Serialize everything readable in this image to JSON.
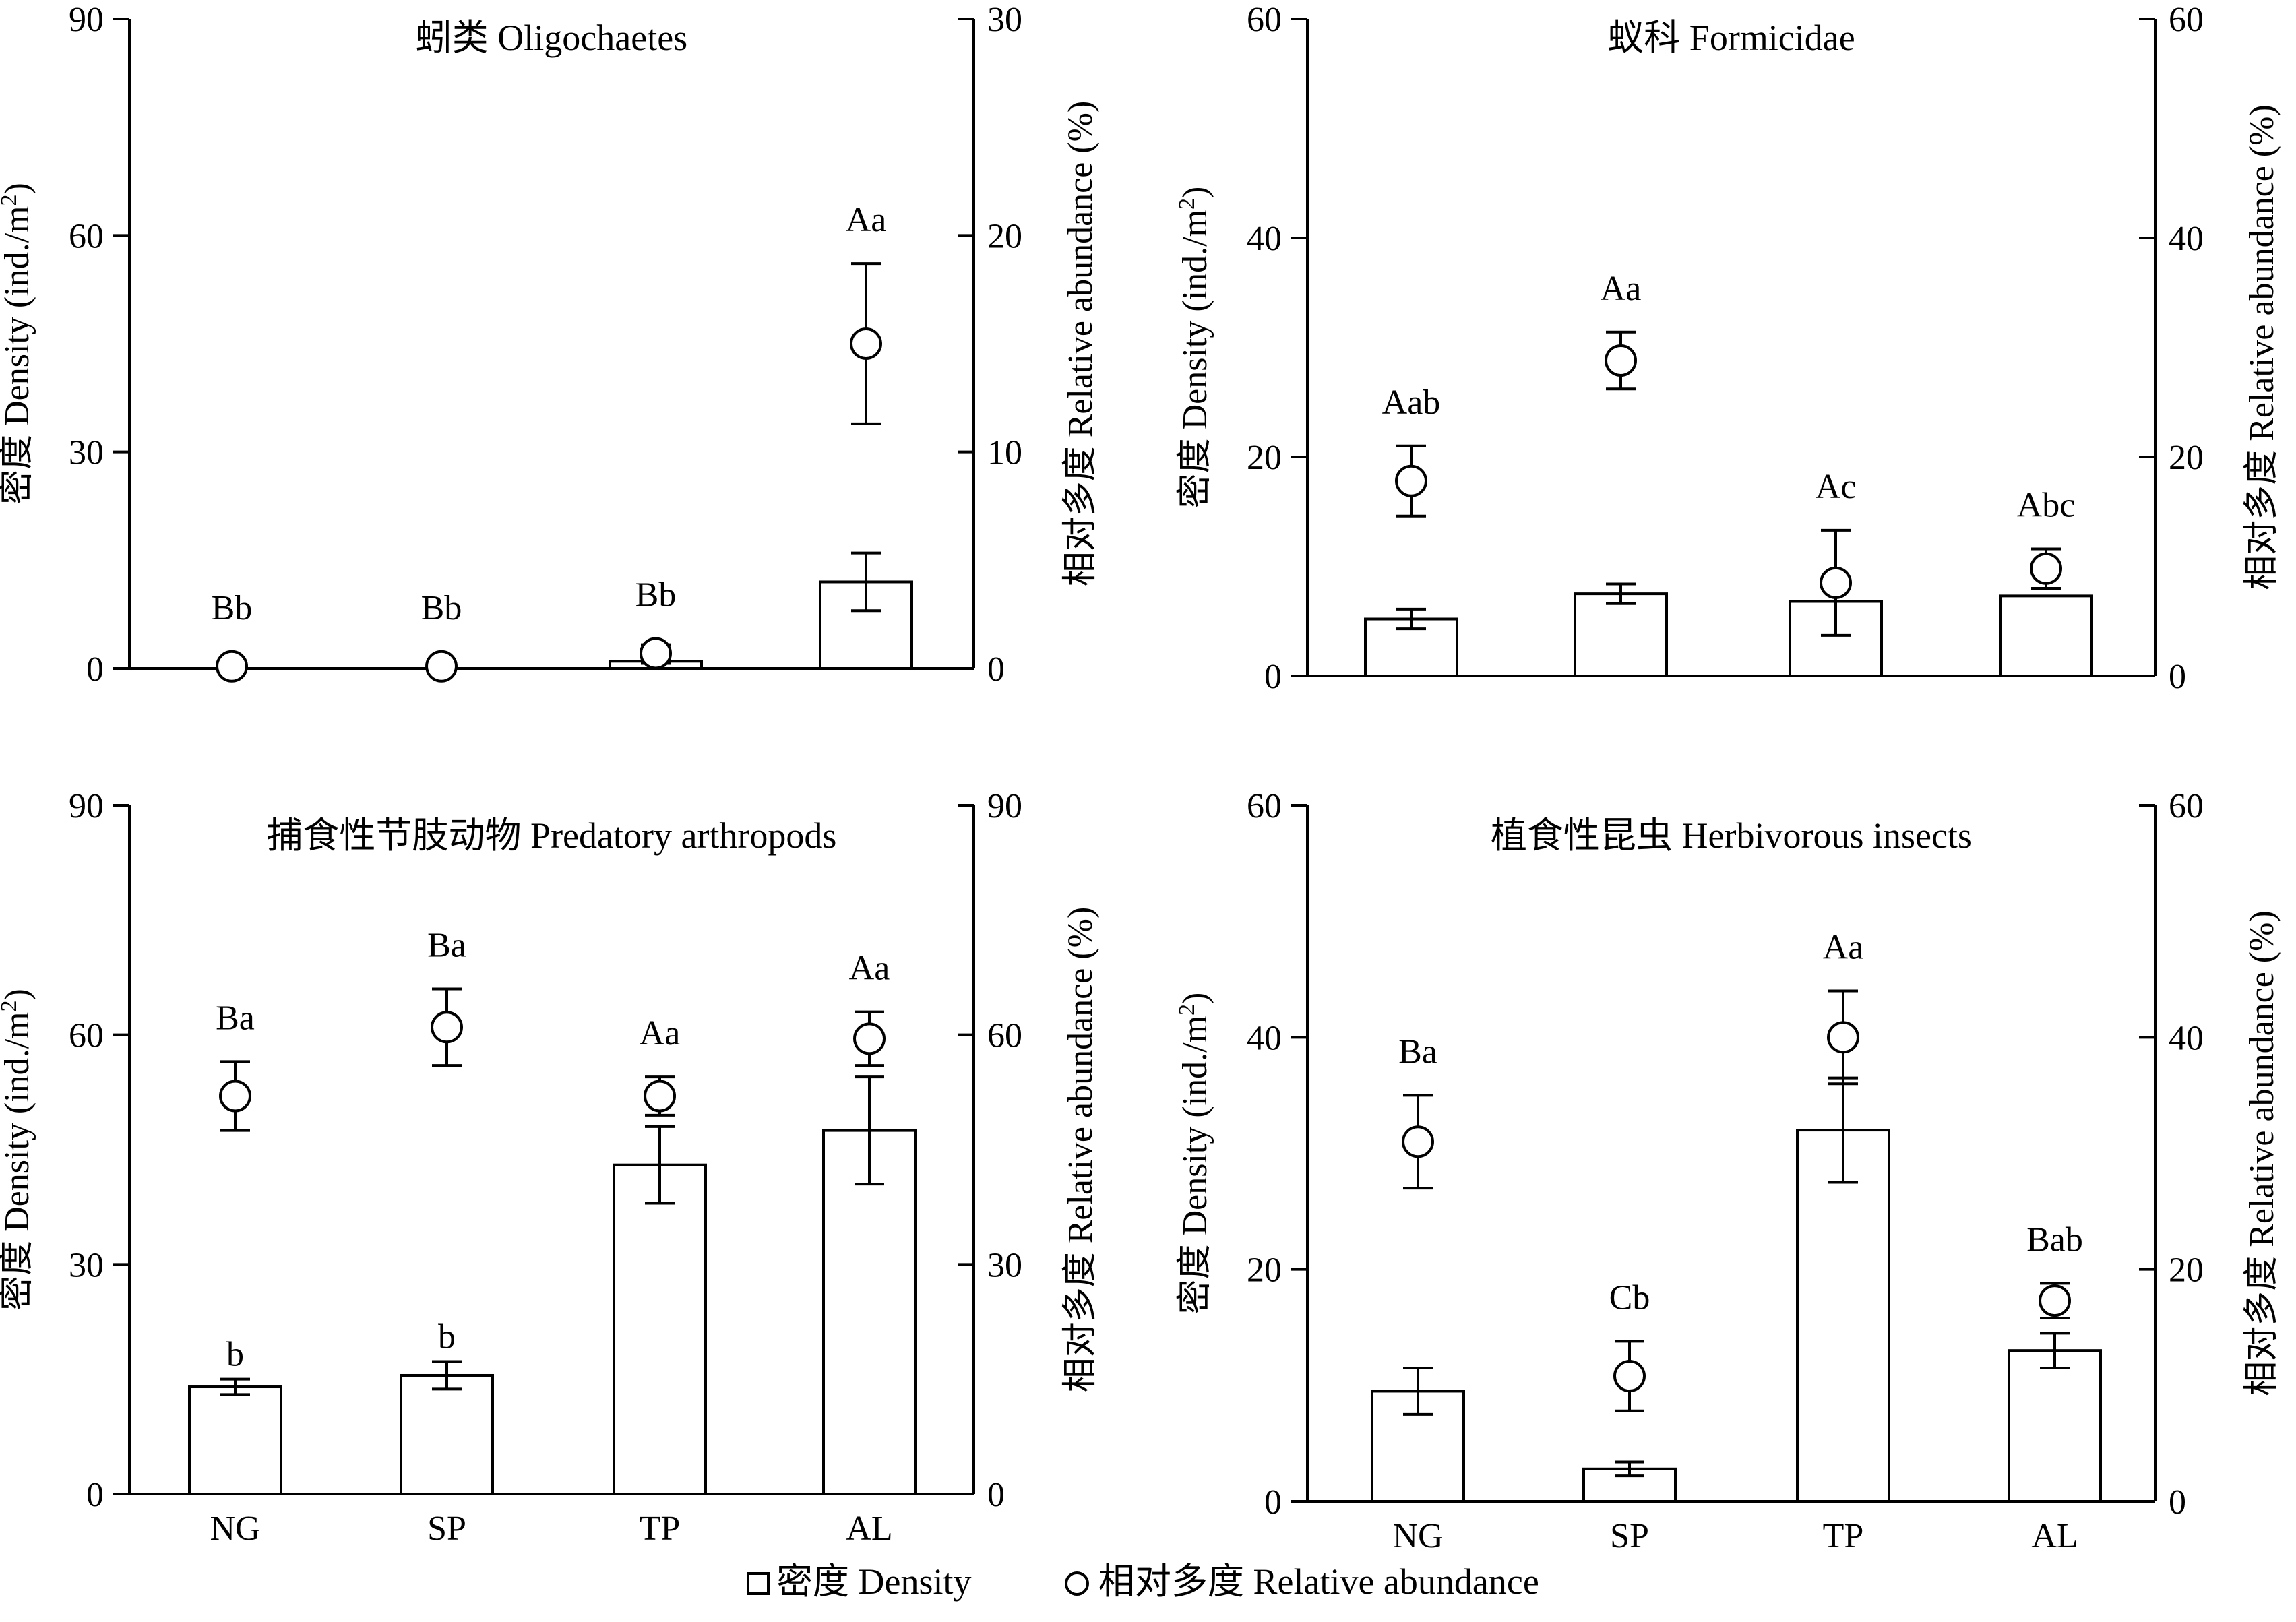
{
  "chart_data": [
    {
      "type": "bar",
      "title": "蚓类 Oligochaetes",
      "categories": [
        "NG",
        "SP",
        "TP",
        "AL"
      ],
      "show_category_labels": false,
      "ylabel": "密度 Density (ind./m²)",
      "y2label": "相对多度 Relative abundance (%)",
      "ylim": [
        0,
        90
      ],
      "y_ticks": [
        0,
        30,
        60,
        90
      ],
      "y2lim": [
        0,
        30
      ],
      "y2_ticks": [
        0,
        10,
        20,
        30
      ],
      "series": [
        {
          "name": "密度 Density",
          "values": [
            0,
            0,
            1,
            12
          ],
          "errors": [
            0,
            0,
            0.3,
            4
          ],
          "labels": [
            "",
            "",
            "",
            ""
          ]
        },
        {
          "name": "相对多度 Relative abundance",
          "axis": "right",
          "values": [
            0.1,
            0.1,
            0.7,
            15
          ],
          "errors": [
            0,
            0,
            0.4,
            3.7
          ],
          "labels": [
            "Bb",
            "Bb",
            "Bb",
            "Aa"
          ]
        }
      ]
    },
    {
      "type": "bar",
      "title": "蚁科 Formicidae",
      "categories": [
        "NG",
        "SP",
        "TP",
        "AL"
      ],
      "show_category_labels": false,
      "ylabel": "密度 Density (ind./m²)",
      "y2label": "相对多度 Relative abundance (%)",
      "ylim": [
        0,
        60
      ],
      "y_ticks": [
        0,
        20,
        40,
        60
      ],
      "y2lim": [
        0,
        60
      ],
      "y2_ticks": [
        0,
        20,
        40,
        60
      ],
      "series": [
        {
          "name": "密度 Density",
          "values": [
            5.2,
            7.5,
            6.8,
            7.3
          ],
          "errors": [
            0.9,
            0.9,
            0,
            0
          ],
          "labels": [
            "",
            "",
            "",
            ""
          ]
        },
        {
          "name": "相对多度 Relative abundance",
          "axis": "right",
          "values": [
            17.8,
            28.8,
            8.5,
            9.8
          ],
          "errors": [
            3.2,
            2.6,
            4.8,
            1.8
          ],
          "labels": [
            "Aab",
            "Aa",
            "Ac",
            "Abc"
          ]
        }
      ]
    },
    {
      "type": "bar",
      "title": "捕食性节肢动物 Predatory arthropods",
      "categories": [
        "NG",
        "SP",
        "TP",
        "AL"
      ],
      "show_category_labels": true,
      "ylabel": "密度 Density (ind./m²)",
      "y2label": "相对多度 Relative abundance (%)",
      "ylim": [
        0,
        90
      ],
      "y_ticks": [
        0,
        30,
        60,
        90
      ],
      "y2lim": [
        0,
        90
      ],
      "y2_ticks": [
        0,
        30,
        60,
        90
      ],
      "series": [
        {
          "name": "密度 Density",
          "values": [
            14,
            15.5,
            43,
            47.5
          ],
          "errors": [
            1,
            1.8,
            5,
            7
          ],
          "labels": [
            "b",
            "b",
            "",
            ""
          ]
        },
        {
          "name": "相对多度 Relative abundance",
          "axis": "right",
          "values": [
            52,
            61,
            52,
            59.5
          ],
          "errors": [
            4.5,
            5,
            2.5,
            3.5
          ],
          "labels": [
            "Ba",
            "Ba",
            "Aa",
            "Aa"
          ]
        }
      ]
    },
    {
      "type": "bar",
      "title": "植食性昆虫 Herbivorous insects",
      "categories": [
        "NG",
        "SP",
        "TP",
        "AL"
      ],
      "show_category_labels": true,
      "ylabel": "密度 Density (ind./m²)",
      "y2label": "相对多度 Relative abundance (%)",
      "ylim": [
        0,
        60
      ],
      "y_ticks": [
        0,
        20,
        40,
        60
      ],
      "y2lim": [
        0,
        60
      ],
      "y2_ticks": [
        0,
        20,
        40,
        60
      ],
      "series": [
        {
          "name": "密度 Density",
          "values": [
            9.5,
            2.8,
            32,
            13
          ],
          "errors": [
            2,
            0.6,
            4.5,
            1.5
          ],
          "labels": [
            "",
            "",
            "",
            ""
          ]
        },
        {
          "name": "相对多度 Relative abundance",
          "axis": "right",
          "values": [
            31,
            10.8,
            40,
            17.3
          ],
          "errors": [
            4,
            3,
            4,
            1.5
          ],
          "labels": [
            "Ba",
            "Cb",
            "Aa",
            "Bab"
          ]
        }
      ]
    }
  ],
  "legend": {
    "position": "bottom",
    "items": [
      {
        "marker": "square",
        "label": "密度 Density"
      },
      {
        "marker": "circle",
        "label": "相对多度 Relative abundance"
      }
    ]
  }
}
